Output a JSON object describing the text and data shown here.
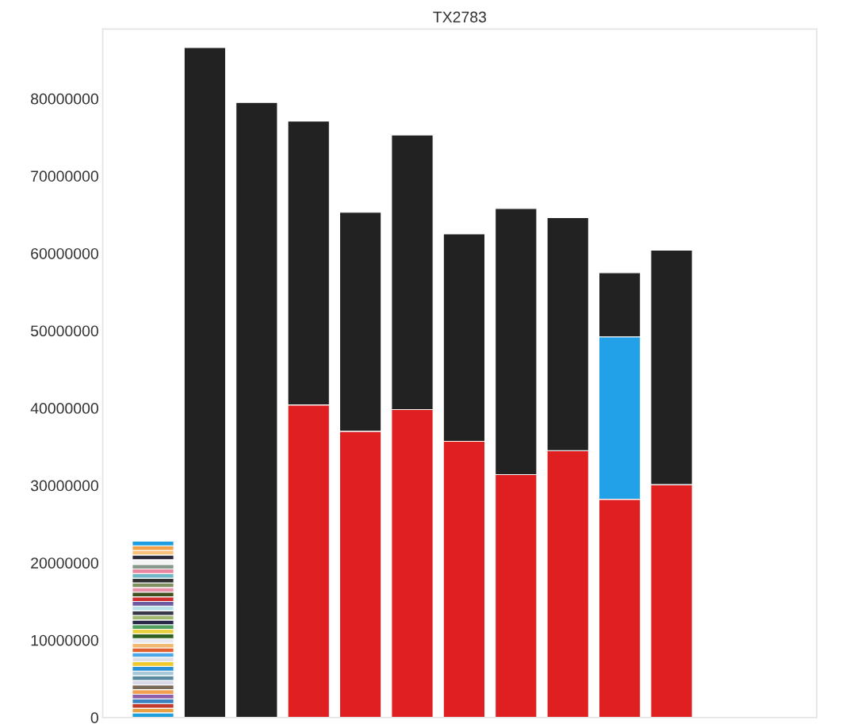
{
  "chart_data": {
    "type": "bar",
    "stacked": true,
    "title": "TX2783",
    "categories": [
      null,
      null,
      null,
      null,
      null,
      null,
      null,
      null,
      null,
      null,
      null
    ],
    "ylim": [
      0,
      89000000
    ],
    "yticks": [
      0,
      10000000,
      20000000,
      30000000,
      40000000,
      50000000,
      60000000,
      70000000,
      80000000
    ],
    "tick_labels": "y",
    "grid": false,
    "series": [
      {
        "color": "#1f9fdc",
        "values": [
          600000,
          null,
          null,
          null,
          null,
          null,
          null,
          null,
          null,
          null,
          null
        ]
      },
      {
        "color": "#e8a040",
        "values": [
          600000,
          null,
          null,
          null,
          null,
          null,
          null,
          null,
          null,
          null,
          null
        ]
      },
      {
        "color": "#c0392b",
        "values": [
          600000,
          null,
          null,
          null,
          null,
          null,
          null,
          null,
          null,
          null,
          null
        ]
      },
      {
        "color": "#3a7fc0",
        "values": [
          600000,
          null,
          null,
          null,
          null,
          null,
          null,
          null,
          null,
          null,
          null
        ]
      },
      {
        "color": "#8e5ea8",
        "values": [
          600000,
          null,
          null,
          null,
          null,
          null,
          null,
          null,
          null,
          null,
          null
        ]
      },
      {
        "color": "#f0a050",
        "values": [
          600000,
          null,
          null,
          null,
          null,
          null,
          null,
          null,
          null,
          null,
          null
        ]
      },
      {
        "color": "#7a6a5a",
        "values": [
          600000,
          null,
          null,
          null,
          null,
          null,
          null,
          null,
          null,
          null,
          null
        ]
      },
      {
        "color": "#d8d8e8",
        "values": [
          600000,
          null,
          null,
          null,
          null,
          null,
          null,
          null,
          null,
          null,
          null
        ]
      },
      {
        "color": "#5a8aa0",
        "values": [
          600000,
          null,
          null,
          null,
          null,
          null,
          null,
          null,
          null,
          null,
          null
        ]
      },
      {
        "color": "#a8c8d8",
        "values": [
          600000,
          null,
          null,
          null,
          null,
          null,
          null,
          null,
          null,
          null,
          null
        ]
      },
      {
        "color": "#2a90d8",
        "values": [
          600000,
          null,
          null,
          null,
          null,
          null,
          null,
          null,
          null,
          null,
          null
        ]
      },
      {
        "color": "#f0c830",
        "values": [
          600000,
          null,
          null,
          null,
          null,
          null,
          null,
          null,
          null,
          null,
          null
        ]
      },
      {
        "color": "#e0e0e8",
        "values": [
          600000,
          null,
          null,
          null,
          null,
          null,
          null,
          null,
          null,
          null,
          null
        ]
      },
      {
        "color": "#4aa8e8",
        "values": [
          600000,
          null,
          null,
          null,
          null,
          null,
          null,
          null,
          null,
          null,
          null
        ]
      },
      {
        "color": "#e06030",
        "values": [
          600000,
          null,
          null,
          null,
          null,
          null,
          null,
          null,
          null,
          null,
          null
        ]
      },
      {
        "color": "#f0b870",
        "values": [
          600000,
          null,
          null,
          null,
          null,
          null,
          null,
          null,
          null,
          null,
          null
        ]
      },
      {
        "color": "#e8e8f0",
        "values": [
          600000,
          null,
          null,
          null,
          null,
          null,
          null,
          null,
          null,
          null,
          null
        ]
      },
      {
        "color": "#306020",
        "values": [
          600000,
          null,
          null,
          null,
          null,
          null,
          null,
          null,
          null,
          null,
          null
        ]
      },
      {
        "color": "#e8d040",
        "values": [
          600000,
          null,
          null,
          null,
          null,
          null,
          null,
          null,
          null,
          null,
          null
        ]
      },
      {
        "color": "#50a060",
        "values": [
          600000,
          null,
          null,
          null,
          null,
          null,
          null,
          null,
          null,
          null,
          null
        ]
      },
      {
        "color": "#282848",
        "values": [
          600000,
          null,
          null,
          null,
          null,
          null,
          null,
          null,
          null,
          null,
          null
        ]
      },
      {
        "color": "#a0b870",
        "values": [
          600000,
          null,
          null,
          null,
          null,
          null,
          null,
          null,
          null,
          null,
          null
        ]
      },
      {
        "color": "#383848",
        "values": [
          600000,
          null,
          null,
          null,
          null,
          null,
          null,
          null,
          null,
          null,
          null
        ]
      },
      {
        "color": "#b8e0e8",
        "values": [
          600000,
          null,
          null,
          null,
          null,
          null,
          null,
          null,
          null,
          null,
          null
        ]
      },
      {
        "color": "#6a5aa0",
        "values": [
          600000,
          null,
          null,
          null,
          null,
          null,
          null,
          null,
          null,
          null,
          null
        ]
      },
      {
        "color": "#d03030",
        "values": [
          600000,
          null,
          null,
          null,
          null,
          null,
          null,
          null,
          null,
          null,
          null
        ]
      },
      {
        "color": "#405020",
        "values": [
          600000,
          null,
          null,
          null,
          null,
          null,
          null,
          null,
          null,
          null,
          null
        ]
      },
      {
        "color": "#e890a8",
        "values": [
          600000,
          null,
          null,
          null,
          null,
          null,
          null,
          null,
          null,
          null,
          null
        ]
      },
      {
        "color": "#809060",
        "values": [
          600000,
          null,
          null,
          null,
          null,
          null,
          null,
          null,
          null,
          null,
          null
        ]
      },
      {
        "color": "#303030",
        "values": [
          600000,
          null,
          null,
          null,
          null,
          null,
          null,
          null,
          null,
          null,
          null
        ]
      },
      {
        "color": "#70b8c8",
        "values": [
          600000,
          null,
          null,
          null,
          null,
          null,
          null,
          null,
          null,
          null,
          null
        ]
      },
      {
        "color": "#e888a0",
        "values": [
          600000,
          null,
          null,
          null,
          null,
          null,
          null,
          null,
          null,
          null,
          null
        ]
      },
      {
        "color": "#8a9a8a",
        "values": [
          600000,
          null,
          null,
          null,
          null,
          null,
          null,
          null,
          null,
          null,
          null
        ]
      },
      {
        "color": "#f4f4f4",
        "values": [
          600000,
          null,
          null,
          null,
          null,
          null,
          null,
          null,
          null,
          null,
          null
        ]
      },
      {
        "color": "#2b2b3b",
        "values": [
          600000,
          null,
          null,
          null,
          null,
          null,
          null,
          null,
          null,
          null,
          null
        ]
      },
      {
        "color": "#f7c27a",
        "values": [
          600000,
          null,
          null,
          null,
          null,
          null,
          null,
          null,
          null,
          null,
          null
        ]
      },
      {
        "color": "#f5a14a",
        "values": [
          600000,
          null,
          null,
          null,
          null,
          null,
          null,
          null,
          null,
          null,
          null
        ]
      },
      {
        "color": "#1e9ee0",
        "values": [
          600000,
          null,
          null,
          null,
          null,
          null,
          null,
          null,
          null,
          null,
          null
        ]
      },
      {
        "color": "#e02020",
        "values": [
          null,
          null,
          null,
          40400000,
          37000000,
          39800000,
          35700000,
          31400000,
          34500000,
          28200000,
          30100000
        ]
      },
      {
        "color": "#22a0e8",
        "values": [
          null,
          null,
          null,
          null,
          null,
          null,
          null,
          null,
          null,
          21000000,
          null
        ]
      },
      {
        "color": "#222222",
        "values": [
          null,
          86600000,
          79500000,
          36700000,
          28300000,
          35500000,
          26800000,
          34400000,
          30100000,
          8300000,
          30300000
        ]
      }
    ]
  }
}
